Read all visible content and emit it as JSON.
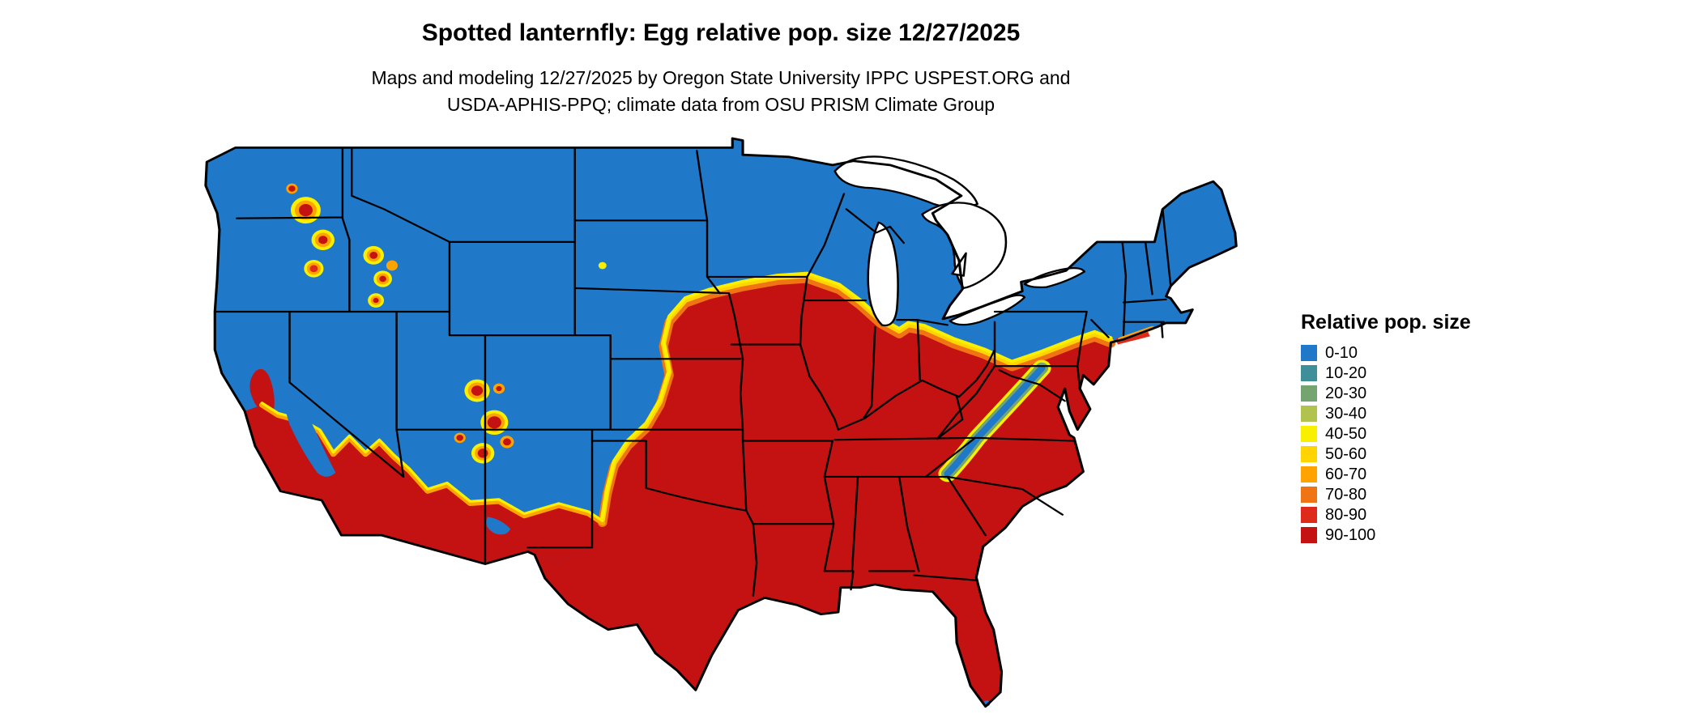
{
  "header": {
    "title": "Spotted lanternfly: Egg relative pop. size 12/27/2025",
    "subtitle_line1": "Maps and modeling 12/27/2025 by Oregon State University IPPC USPEST.ORG and",
    "subtitle_line2": "USDA-APHIS-PPQ; climate data from OSU PRISM Climate Group"
  },
  "legend": {
    "title": "Relative pop. size",
    "items": [
      {
        "label": "0-10",
        "color": "#1F78C8"
      },
      {
        "label": "10-20",
        "color": "#3E8F99"
      },
      {
        "label": "20-30",
        "color": "#74A46F"
      },
      {
        "label": "30-40",
        "color": "#B2C34D"
      },
      {
        "label": "40-50",
        "color": "#F9F000"
      },
      {
        "label": "50-60",
        "color": "#FFD400"
      },
      {
        "label": "60-70",
        "color": "#FFA300"
      },
      {
        "label": "70-80",
        "color": "#F07314"
      },
      {
        "label": "80-90",
        "color": "#DE2A1B"
      },
      {
        "label": "90-100",
        "color": "#C41111"
      }
    ]
  }
}
